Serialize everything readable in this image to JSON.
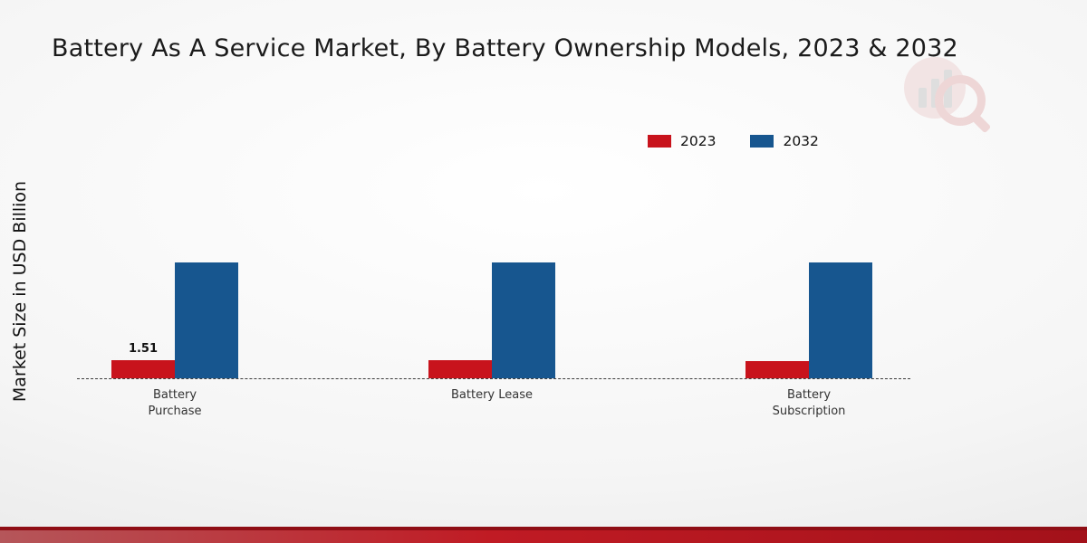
{
  "page": {
    "title": "Battery As A Service Market, By Battery Ownership Models, 2023 & 2032",
    "ylabel": "Market Size in USD Billion"
  },
  "legend": {
    "items": [
      {
        "label": "2023"
      },
      {
        "label": "2032"
      }
    ]
  },
  "colors": {
    "series_2023": "#c8131c",
    "series_2032": "#17568f",
    "footer_red": "#a3111a"
  },
  "chart_data": {
    "type": "bar",
    "title": "Battery As A Service Market, By Battery Ownership Models, 2023 & 2032",
    "xlabel": "",
    "ylabel": "Market Size in USD Billion",
    "categories": [
      "Battery Purchase",
      "Battery Lease",
      "Battery Subscription"
    ],
    "series": [
      {
        "name": "2023",
        "color": "#c8131c",
        "values": [
          1.51,
          1.55,
          1.45
        ]
      },
      {
        "name": "2032",
        "color": "#17568f",
        "values": [
          9.7,
          9.7,
          9.7
        ]
      }
    ],
    "data_labels": [
      {
        "series_index": 0,
        "category_index": 0,
        "text": "1.51"
      }
    ],
    "ylim": [
      0,
      10
    ],
    "grid": false,
    "y_axis_ticks_visible": false,
    "baseline_style": "dashed",
    "legend_position": "top-right"
  }
}
